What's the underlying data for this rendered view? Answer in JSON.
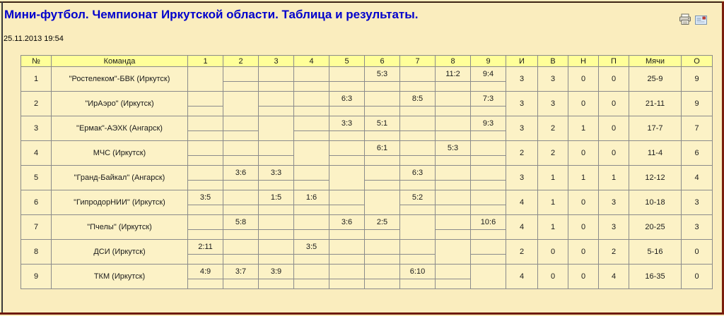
{
  "page": {
    "title": "Мини-футбол. Чемпионат Иркутской области. Таблица и результаты.",
    "timestamp": "25.11.2013 19:54"
  },
  "toolbar": {
    "print_icon": "print-icon",
    "email_icon": "email-icon"
  },
  "colors": {
    "title": "#0000CC",
    "page_bg": "#FAEDBE",
    "cell_bg": "#FCF2C6",
    "header_bg": "#FFFF99",
    "win": "#CC3333",
    "draw": "#3333CC",
    "loss": "#1a1a1a"
  },
  "table": {
    "headers": {
      "num": "№",
      "team": "Команда",
      "rounds": [
        "1",
        "2",
        "3",
        "4",
        "5",
        "6",
        "7",
        "8",
        "9"
      ],
      "played": "И",
      "wins": "В",
      "draws": "Н",
      "losses": "П",
      "goals": "Мячи",
      "points": "О"
    },
    "teams": [
      {
        "num": "1",
        "name": "\"Ростелеком\"-БВК (Иркутск)",
        "results": [
          null,
          null,
          null,
          null,
          null,
          {
            "score": "5:3",
            "outcome": "win"
          },
          null,
          {
            "score": "11:2",
            "outcome": "win"
          },
          {
            "score": "9:4",
            "outcome": "win"
          }
        ],
        "played": "3",
        "wins": "3",
        "draws": "0",
        "losses": "0",
        "goals": "25-9",
        "points": "9"
      },
      {
        "num": "2",
        "name": "\"ИрАэро\" (Иркутск)",
        "results": [
          null,
          null,
          null,
          null,
          {
            "score": "6:3",
            "outcome": "win"
          },
          null,
          {
            "score": "8:5",
            "outcome": "win"
          },
          null,
          {
            "score": "7:3",
            "outcome": "win"
          }
        ],
        "played": "3",
        "wins": "3",
        "draws": "0",
        "losses": "0",
        "goals": "21-11",
        "points": "9"
      },
      {
        "num": "3",
        "name": "\"Ермак\"-АЭХК (Ангарск)",
        "results": [
          null,
          null,
          null,
          null,
          {
            "score": "3:3",
            "outcome": "draw"
          },
          {
            "score": "5:1",
            "outcome": "win"
          },
          null,
          null,
          {
            "score": "9:3",
            "outcome": "win"
          }
        ],
        "played": "3",
        "wins": "2",
        "draws": "1",
        "losses": "0",
        "goals": "17-7",
        "points": "7"
      },
      {
        "num": "4",
        "name": "МЧС (Иркутск)",
        "results": [
          null,
          null,
          null,
          null,
          null,
          {
            "score": "6:1",
            "outcome": "win"
          },
          null,
          {
            "score": "5:3",
            "outcome": "win"
          },
          null
        ],
        "played": "2",
        "wins": "2",
        "draws": "0",
        "losses": "0",
        "goals": "11-4",
        "points": "6"
      },
      {
        "num": "5",
        "name": "\"Гранд-Байкал\" (Ангарск)",
        "results": [
          null,
          {
            "score": "3:6",
            "outcome": "loss"
          },
          {
            "score": "3:3",
            "outcome": "draw"
          },
          null,
          null,
          null,
          {
            "score": "6:3",
            "outcome": "win"
          },
          null,
          null
        ],
        "played": "3",
        "wins": "1",
        "draws": "1",
        "losses": "1",
        "goals": "12-12",
        "points": "4"
      },
      {
        "num": "6",
        "name": "\"ГипродорНИИ\" (Иркутск)",
        "results": [
          {
            "score": "3:5",
            "outcome": "loss"
          },
          null,
          {
            "score": "1:5",
            "outcome": "loss"
          },
          {
            "score": "1:6",
            "outcome": "loss"
          },
          null,
          null,
          {
            "score": "5:2",
            "outcome": "win"
          },
          null,
          null
        ],
        "played": "4",
        "wins": "1",
        "draws": "0",
        "losses": "3",
        "goals": "10-18",
        "points": "3"
      },
      {
        "num": "7",
        "name": "\"Пчелы\" (Иркутск)",
        "results": [
          null,
          {
            "score": "5:8",
            "outcome": "loss"
          },
          null,
          null,
          {
            "score": "3:6",
            "outcome": "loss"
          },
          {
            "score": "2:5",
            "outcome": "loss"
          },
          null,
          null,
          {
            "score": "10:6",
            "outcome": "win"
          }
        ],
        "played": "4",
        "wins": "1",
        "draws": "0",
        "losses": "3",
        "goals": "20-25",
        "points": "3"
      },
      {
        "num": "8",
        "name": "ДСИ (Иркутск)",
        "results": [
          {
            "score": "2:11",
            "outcome": "loss"
          },
          null,
          null,
          {
            "score": "3:5",
            "outcome": "loss"
          },
          null,
          null,
          null,
          null,
          null
        ],
        "played": "2",
        "wins": "0",
        "draws": "0",
        "losses": "2",
        "goals": "5-16",
        "points": "0"
      },
      {
        "num": "9",
        "name": "ТКМ (Иркутск)",
        "results": [
          {
            "score": "4:9",
            "outcome": "loss"
          },
          {
            "score": "3:7",
            "outcome": "loss"
          },
          {
            "score": "3:9",
            "outcome": "loss"
          },
          null,
          null,
          null,
          {
            "score": "6:10",
            "outcome": "loss"
          },
          null,
          null
        ],
        "played": "4",
        "wins": "0",
        "draws": "0",
        "losses": "4",
        "goals": "16-35",
        "points": "0"
      }
    ]
  }
}
